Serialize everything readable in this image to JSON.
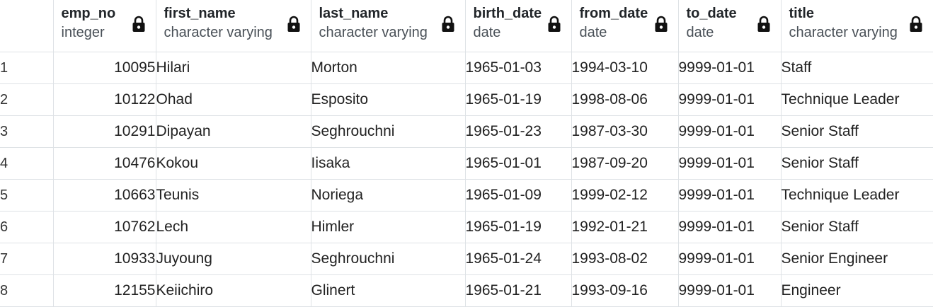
{
  "columns": [
    {
      "name": "emp_no",
      "type": "integer"
    },
    {
      "name": "first_name",
      "type": "character varying"
    },
    {
      "name": "last_name",
      "type": "character varying"
    },
    {
      "name": "birth_date",
      "type": "date"
    },
    {
      "name": "from_date",
      "type": "date"
    },
    {
      "name": "to_date",
      "type": "date"
    },
    {
      "name": "title",
      "type": "character varying"
    }
  ],
  "rows": [
    {
      "num": "1",
      "emp_no": "10095",
      "first_name": "Hilari",
      "last_name": "Morton",
      "birth_date": "1965-01-03",
      "from_date": "1994-03-10",
      "to_date": "9999-01-01",
      "title": "Staff"
    },
    {
      "num": "2",
      "emp_no": "10122",
      "first_name": "Ohad",
      "last_name": "Esposito",
      "birth_date": "1965-01-19",
      "from_date": "1998-08-06",
      "to_date": "9999-01-01",
      "title": "Technique Leader"
    },
    {
      "num": "3",
      "emp_no": "10291",
      "first_name": "Dipayan",
      "last_name": "Seghrouchni",
      "birth_date": "1965-01-23",
      "from_date": "1987-03-30",
      "to_date": "9999-01-01",
      "title": "Senior Staff"
    },
    {
      "num": "4",
      "emp_no": "10476",
      "first_name": "Kokou",
      "last_name": "Iisaka",
      "birth_date": "1965-01-01",
      "from_date": "1987-09-20",
      "to_date": "9999-01-01",
      "title": "Senior Staff"
    },
    {
      "num": "5",
      "emp_no": "10663",
      "first_name": "Teunis",
      "last_name": "Noriega",
      "birth_date": "1965-01-09",
      "from_date": "1999-02-12",
      "to_date": "9999-01-01",
      "title": "Technique Leader"
    },
    {
      "num": "6",
      "emp_no": "10762",
      "first_name": "Lech",
      "last_name": "Himler",
      "birth_date": "1965-01-19",
      "from_date": "1992-01-21",
      "to_date": "9999-01-01",
      "title": "Senior Staff"
    },
    {
      "num": "7",
      "emp_no": "10933",
      "first_name": "Juyoung",
      "last_name": "Seghrouchni",
      "birth_date": "1965-01-24",
      "from_date": "1993-08-02",
      "to_date": "9999-01-01",
      "title": "Senior Engineer"
    },
    {
      "num": "8",
      "emp_no": "12155",
      "first_name": "Keiichiro",
      "last_name": "Glinert",
      "birth_date": "1965-01-21",
      "from_date": "1993-09-16",
      "to_date": "9999-01-01",
      "title": "Engineer"
    }
  ],
  "icons": {
    "column_lock": "lock-icon"
  }
}
